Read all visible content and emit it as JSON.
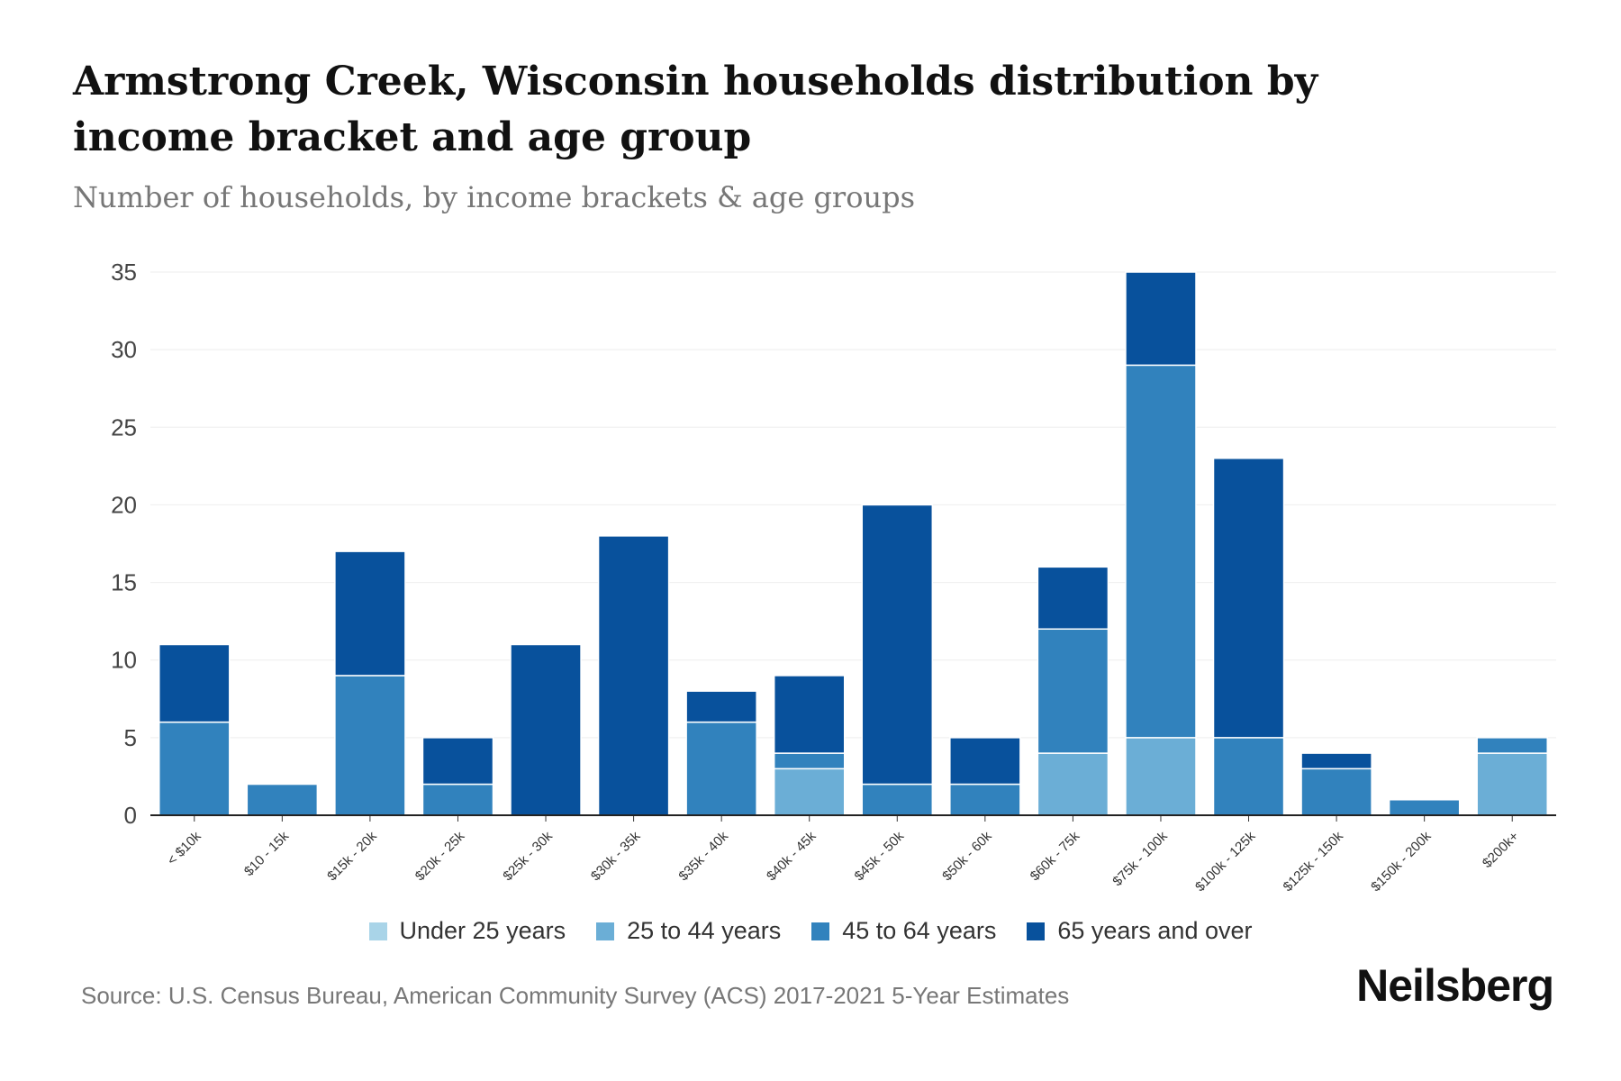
{
  "title": "Armstrong Creek, Wisconsin households distribution by income bracket and age group",
  "subtitle": "Number of households, by income brackets & age groups",
  "source": "Source: U.S. Census Bureau, American Community Survey (ACS) 2017-2021 5-Year Estimates",
  "logo": "Neilsberg",
  "chart_data": {
    "type": "bar",
    "stacked": true,
    "title": "Armstrong Creek, Wisconsin households distribution by income bracket and age group",
    "xlabel": "",
    "ylabel": "",
    "ylim": [
      0,
      35
    ],
    "yticks": [
      0,
      5,
      10,
      15,
      20,
      25,
      30,
      35
    ],
    "grid": true,
    "legend_position": "bottom",
    "categories": [
      "< $10k",
      "$10 - 15k",
      "$15k - 20k",
      "$20k - 25k",
      "$25k - 30k",
      "$30k - 35k",
      "$35k - 40k",
      "$40k - 45k",
      "$45k - 50k",
      "$50k - 60k",
      "$60k - 75k",
      "$75k - 100k",
      "$100k - 125k",
      "$125k - 150k",
      "$150k - 200k",
      "$200k+"
    ],
    "series": [
      {
        "name": "Under 25 years",
        "color": "#a9d4e8",
        "values": [
          0,
          0,
          0,
          0,
          0,
          0,
          0,
          0,
          0,
          0,
          0,
          0,
          0,
          0,
          0,
          0
        ]
      },
      {
        "name": "25 to 44 years",
        "color": "#6baed6",
        "values": [
          0,
          0,
          0,
          0,
          0,
          0,
          0,
          3,
          0,
          0,
          4,
          5,
          0,
          0,
          0,
          4
        ]
      },
      {
        "name": "45 to 64 years",
        "color": "#3182bd",
        "values": [
          6,
          2,
          9,
          2,
          0,
          0,
          6,
          1,
          2,
          2,
          8,
          24,
          5,
          3,
          1,
          1
        ]
      },
      {
        "name": "65 years and over",
        "color": "#08519c",
        "values": [
          5,
          0,
          8,
          3,
          11,
          18,
          2,
          5,
          18,
          3,
          4,
          6,
          18,
          1,
          0,
          0
        ]
      }
    ]
  }
}
